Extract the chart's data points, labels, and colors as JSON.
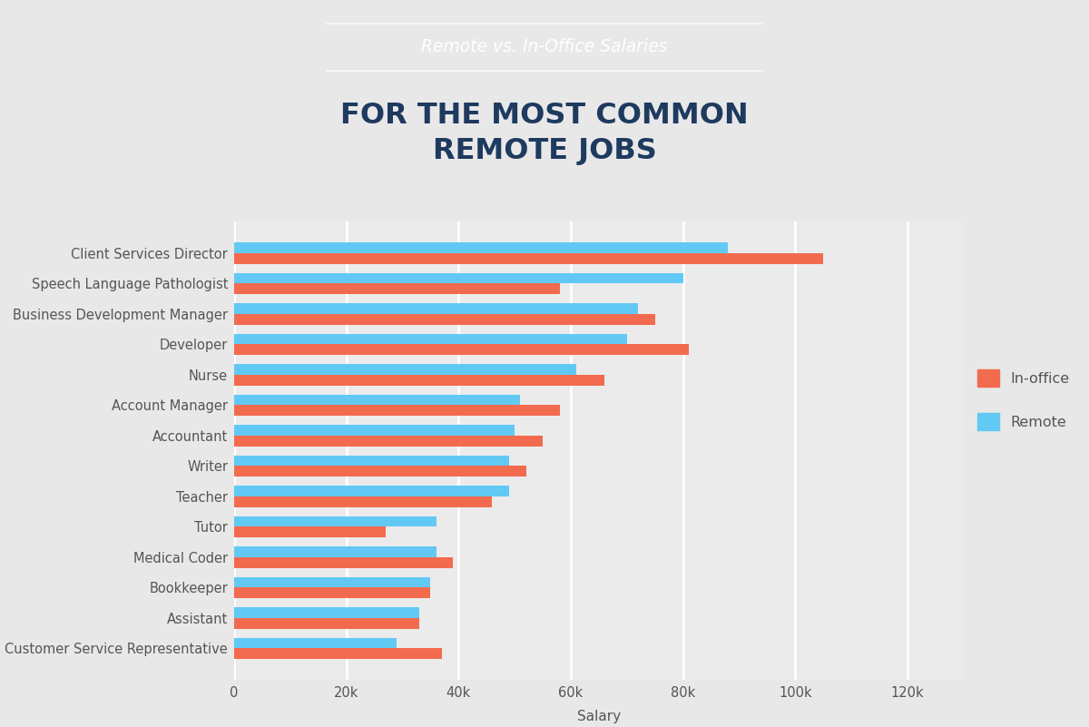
{
  "categories": [
    "Client Services Director",
    "Speech Language Pathologist",
    "Business Development Manager",
    "Developer",
    "Nurse",
    "Account Manager",
    "Accountant",
    "Writer",
    "Teacher",
    "Tutor",
    "Medical Coder",
    "Bookkeeper",
    "Assistant",
    "Customer Service Representative"
  ],
  "inoffice": [
    105000,
    58000,
    75000,
    81000,
    66000,
    58000,
    55000,
    52000,
    46000,
    27000,
    39000,
    35000,
    33000,
    37000
  ],
  "remote": [
    88000,
    80000,
    72000,
    70000,
    61000,
    51000,
    50000,
    49000,
    49000,
    36000,
    36000,
    35000,
    33000,
    29000
  ],
  "inoffice_color": "#F26B4E",
  "remote_color": "#62C9F5",
  "chart_bg_color": "#EBEBEB",
  "grid_color": "#FFFFFF",
  "text_color": "#555555",
  "title_main": "FOR THE MOST COMMON\nREMOTE JOBS",
  "title_sub": "Remote vs. In-Office Salaries",
  "xlabel": "Salary",
  "xlim": [
    0,
    130000
  ],
  "xticks": [
    0,
    20000,
    40000,
    60000,
    80000,
    100000,
    120000
  ],
  "xtick_labels": [
    "0",
    "20k",
    "40k",
    "60k",
    "80k",
    "100k",
    "120k"
  ],
  "header_bg_color": "#4BAAD4",
  "bar_height": 0.35,
  "legend_inoffice": "In-office",
  "legend_remote": "Remote",
  "fig_bg_color": "#E8E8E8"
}
